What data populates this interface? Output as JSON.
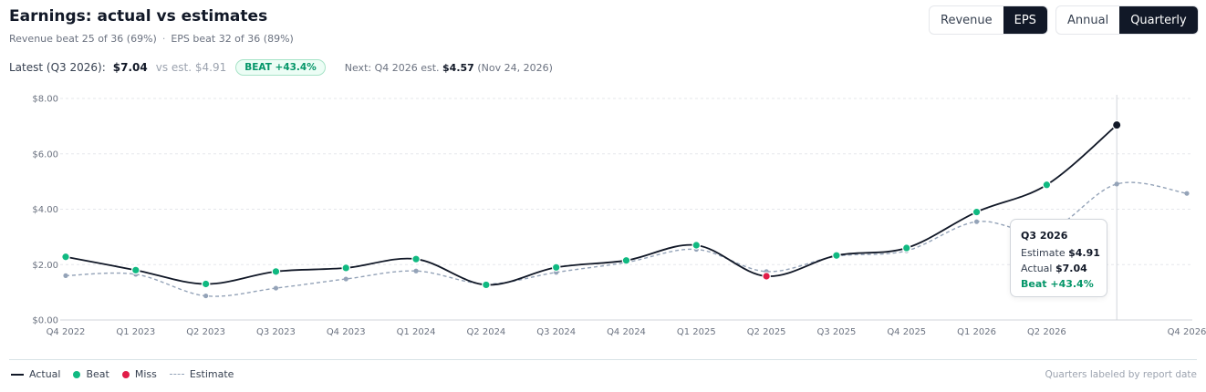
{
  "header": {
    "title": "Earnings: actual vs estimates",
    "revenue_beat": "Revenue beat 25 of 36 (69%)",
    "eps_beat": "EPS beat 32 of 36 (89%)",
    "separator": "·"
  },
  "toggles": {
    "metric": [
      "Revenue",
      "EPS"
    ],
    "metric_active": "EPS",
    "period": [
      "Annual",
      "Quarterly"
    ],
    "period_active": "Quarterly"
  },
  "latest": {
    "label": "Latest (Q3 2026):",
    "value": "$7.04",
    "estimate": "vs est. $4.91",
    "badge": "BEAT +43.4%",
    "next_prefix": "Next: Q4 2026 est.",
    "next_value": "$4.57",
    "next_date": "(Nov 24, 2026)"
  },
  "tooltip": {
    "title": "Q3 2026",
    "estimate_label": "Estimate",
    "estimate_value": "$4.91",
    "actual_label": "Actual",
    "actual_value": "$7.04",
    "result": "Beat +43.4%"
  },
  "legend": {
    "actual": "Actual",
    "beat": "Beat",
    "miss": "Miss",
    "estimate": "Estimate",
    "note": "Quarters labeled by report date"
  },
  "colors": {
    "actual": "#111827",
    "beat": "#10b981",
    "miss": "#e11d48",
    "estimate": "#94a3b8",
    "grid": "#e5e7eb"
  },
  "chart_data": {
    "type": "line",
    "title": "",
    "xlabel": "",
    "ylabel": "",
    "ylim": [
      0,
      8
    ],
    "yticks": [
      "$0.00",
      "$2.00",
      "$4.00",
      "$6.00",
      "$8.00"
    ],
    "ytick_values": [
      0,
      2,
      4,
      6,
      8
    ],
    "x": [
      "Q4 2022",
      "Q1 2023",
      "Q2 2023",
      "Q3 2023",
      "Q4 2023",
      "Q1 2024",
      "Q2 2024",
      "Q3 2024",
      "Q4 2024",
      "Q1 2025",
      "Q2 2025",
      "Q3 2025",
      "Q4 2025",
      "Q1 2026",
      "Q2 2026",
      "Q3 2026",
      "Q4 2026"
    ],
    "xtick_labels": [
      "Q4 2022",
      "Q1 2023",
      "Q2 2023",
      "Q3 2023",
      "Q4 2023",
      "Q1 2024",
      "Q2 2024",
      "Q3 2024",
      "Q4 2024",
      "Q1 2025",
      "Q2 2025",
      "Q3 2025",
      "Q4 2025",
      "Q1 2026",
      "Q2 2026",
      "",
      "Q4 2026"
    ],
    "series": [
      {
        "name": "Actual",
        "values": [
          2.28,
          1.8,
          1.3,
          1.75,
          1.88,
          2.2,
          1.27,
          1.9,
          2.15,
          2.7,
          1.58,
          2.33,
          2.6,
          3.9,
          4.88,
          7.04,
          null
        ],
        "result": [
          "beat",
          "beat",
          "beat",
          "beat",
          "beat",
          "beat",
          "beat",
          "beat",
          "beat",
          "beat",
          "miss",
          "beat",
          "beat",
          "beat",
          "beat",
          "beat",
          null
        ]
      },
      {
        "name": "Estimate",
        "values": [
          1.6,
          1.65,
          0.87,
          1.15,
          1.48,
          1.77,
          1.3,
          1.72,
          2.08,
          2.55,
          1.75,
          2.3,
          2.5,
          3.55,
          3.2,
          4.91,
          4.57
        ]
      }
    ],
    "highlight": "Q3 2026",
    "legend_position": "bottom-left",
    "grid": true
  }
}
